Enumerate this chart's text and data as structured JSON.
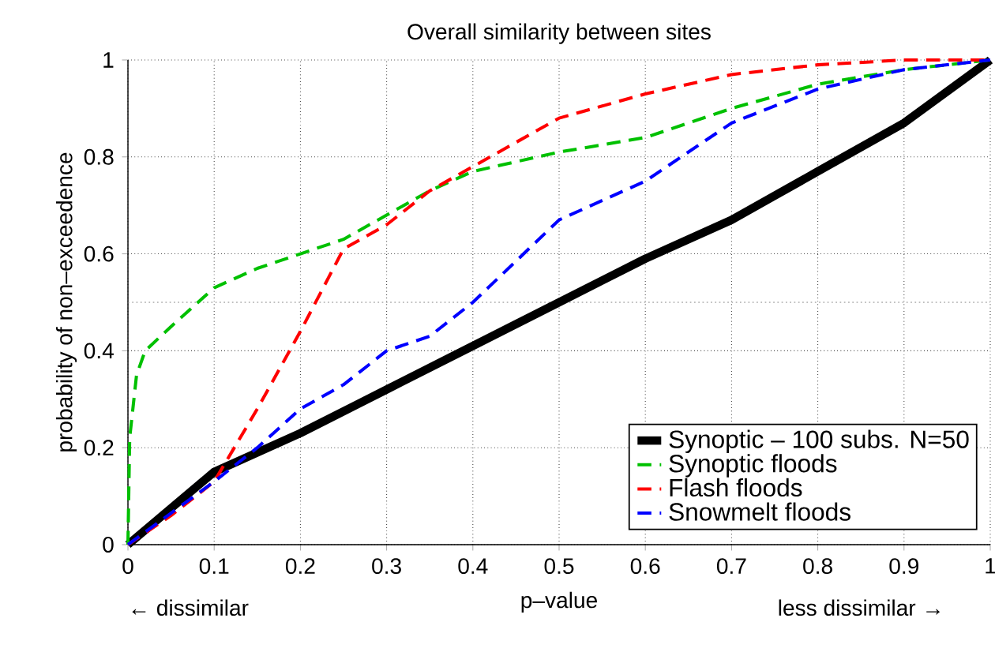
{
  "chart_data": {
    "type": "line",
    "title": "Overall similarity between sites",
    "xlabel": "p–value",
    "ylabel": "probability of non–exceedence",
    "annotations": [
      "← dissimilar",
      "less dissimilar →"
    ],
    "xlim": [
      0,
      1
    ],
    "ylim": [
      0,
      1
    ],
    "xticks": [
      0,
      0.1,
      0.2,
      0.3,
      0.4,
      0.5,
      0.6,
      0.7,
      0.8,
      0.9,
      1
    ],
    "yticks": [
      0,
      0.2,
      0.4,
      0.6,
      0.8,
      1
    ],
    "grid": true,
    "legend": "bottom right",
    "ref_lines": [
      {
        "axis": "y",
        "value": 0.5,
        "color": "#808080",
        "line_style": "dotted"
      }
    ],
    "series": [
      {
        "name": "Synoptic – 100 subs. N=50",
        "color": "#000000",
        "line_style": "solid",
        "x": [
          0,
          0.1,
          0.2,
          0.3,
          0.4,
          0.5,
          0.6,
          0.7,
          0.8,
          0.9,
          1
        ],
        "values": [
          0,
          0.15,
          0.23,
          0.32,
          0.41,
          0.5,
          0.59,
          0.67,
          0.77,
          0.87,
          1
        ]
      },
      {
        "name": "Synoptic floods",
        "color": "#00c000",
        "line_style": "dashed",
        "x": [
          0,
          0.002,
          0.01,
          0.02,
          0.05,
          0.1,
          0.15,
          0.2,
          0.25,
          0.3,
          0.35,
          0.4,
          0.5,
          0.6,
          0.7,
          0.8,
          0.9,
          1
        ],
        "values": [
          0,
          0.22,
          0.35,
          0.4,
          0.45,
          0.53,
          0.57,
          0.6,
          0.63,
          0.68,
          0.73,
          0.77,
          0.81,
          0.84,
          0.9,
          0.95,
          0.98,
          1
        ]
      },
      {
        "name": "Flash floods",
        "color": "#ff0000",
        "line_style": "dashed",
        "x": [
          0,
          0.05,
          0.1,
          0.15,
          0.2,
          0.25,
          0.3,
          0.35,
          0.4,
          0.5,
          0.6,
          0.7,
          0.8,
          0.9,
          1
        ],
        "values": [
          0,
          0.06,
          0.13,
          0.28,
          0.44,
          0.61,
          0.66,
          0.73,
          0.78,
          0.88,
          0.93,
          0.97,
          0.99,
          1,
          1
        ]
      },
      {
        "name": "Snowmelt floods",
        "color": "#0000ff",
        "line_style": "dashed",
        "x": [
          0,
          0.1,
          0.15,
          0.2,
          0.25,
          0.3,
          0.35,
          0.4,
          0.5,
          0.6,
          0.7,
          0.8,
          0.9,
          1
        ],
        "values": [
          0,
          0.13,
          0.2,
          0.28,
          0.33,
          0.4,
          0.43,
          0.5,
          0.67,
          0.75,
          0.87,
          0.94,
          0.98,
          1
        ]
      }
    ]
  }
}
